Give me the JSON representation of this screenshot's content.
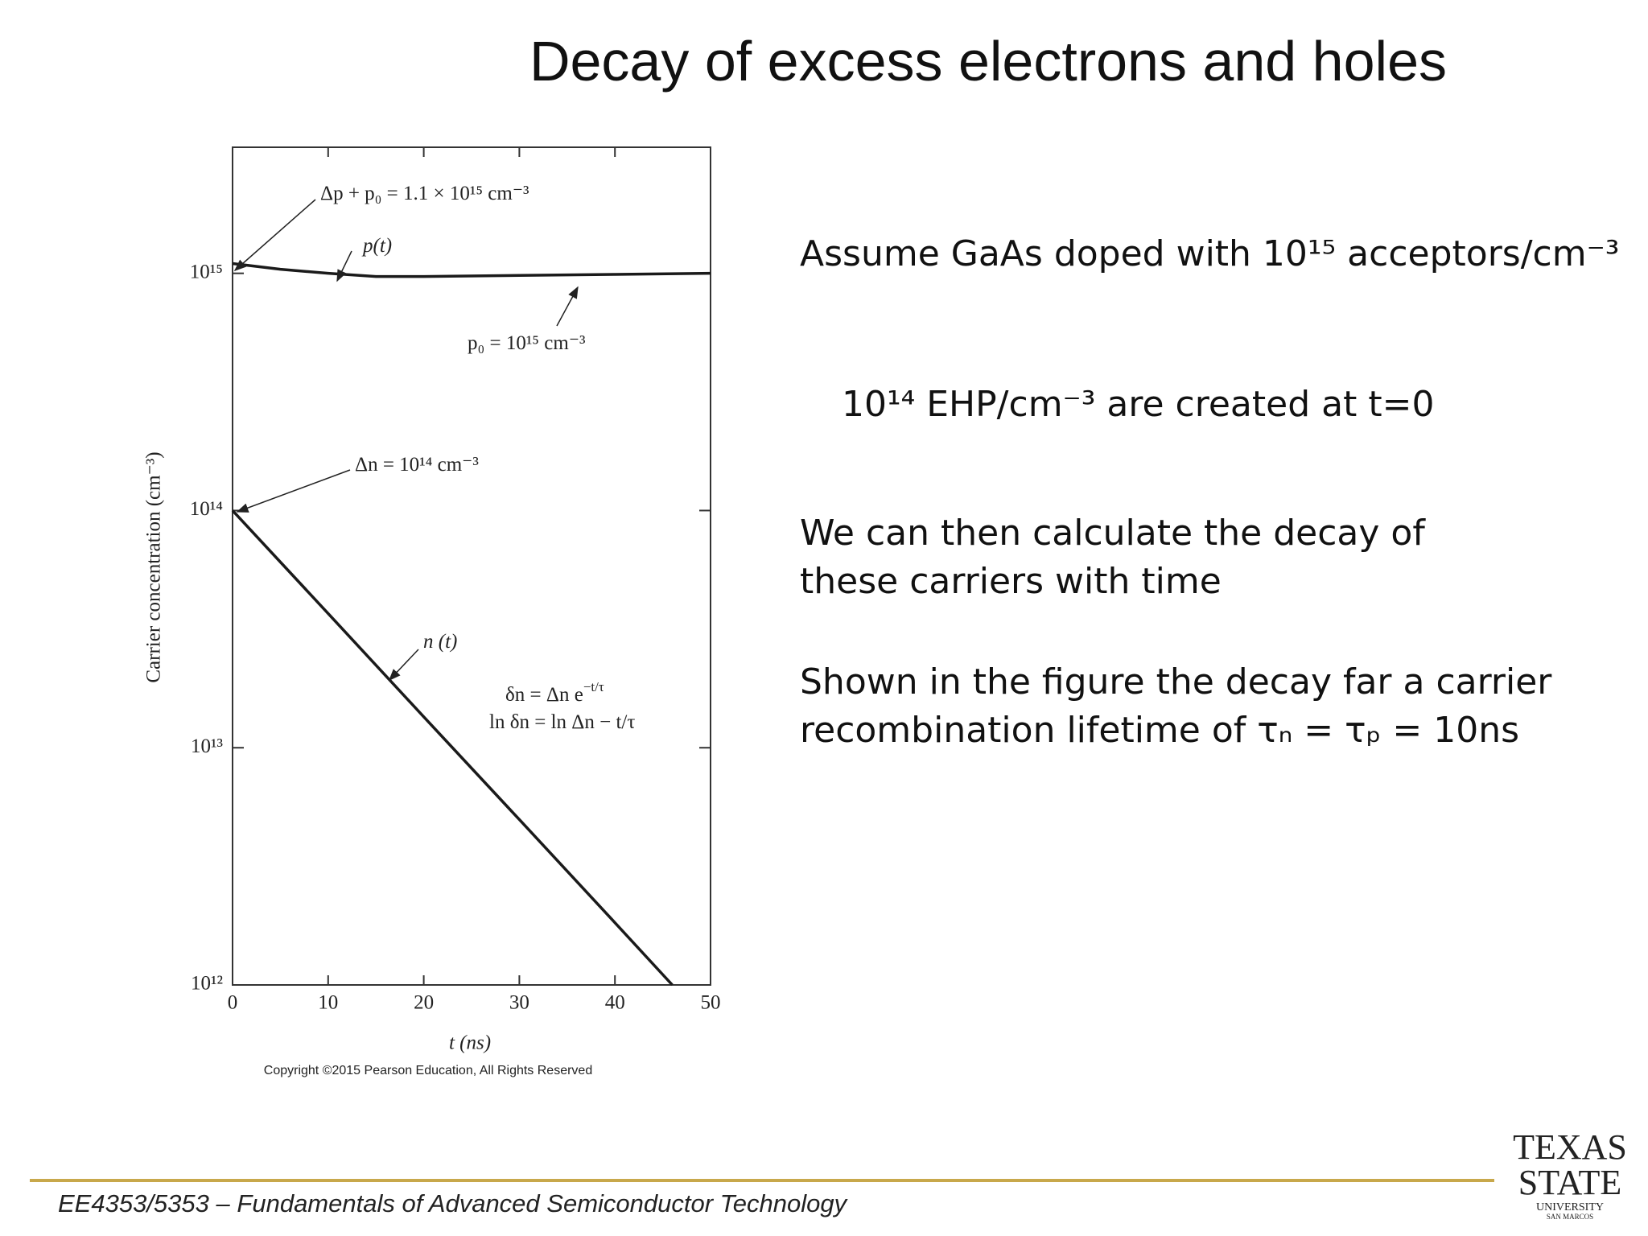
{
  "title": "Decay of excess electrons and holes",
  "chart_data": {
    "type": "line",
    "y_label": "Carrier concentration (cm⁻³)",
    "x_label": "t (ns)",
    "yscale": "log",
    "xlim": [
      0,
      50
    ],
    "xticks": [
      0,
      10,
      20,
      30,
      40,
      50
    ],
    "ylim": [
      1000000000000.0,
      3400000000000000.0
    ],
    "yticks": [
      {
        "value": 1000000000000.0,
        "label": "10¹²"
      },
      {
        "value": 10000000000000.0,
        "label": "10¹³"
      },
      {
        "value": 100000000000000.0,
        "label": "10¹⁴"
      },
      {
        "value": 1000000000000000.0,
        "label": "10¹⁵"
      }
    ],
    "series": [
      {
        "name": "p(t)",
        "color": "#1a1a1a",
        "x": [
          0,
          5,
          10,
          15,
          20,
          30,
          40,
          50
        ],
        "values": [
          1100000000000000.0,
          1040000000000000.0,
          1000000000000000.0,
          970000000000000.0,
          970000000000000.0,
          980000000000000.0,
          990000000000000.0,
          1000000000000000.0
        ]
      },
      {
        "name": "n (t)",
        "color": "#1a1a1a",
        "x": [
          0,
          10,
          20,
          30,
          40,
          46
        ],
        "values": [
          100000000000000.0,
          36800000000000.0,
          13500000000000.0,
          4980000000000.0,
          1830000000000.0,
          1000000000000.0
        ]
      }
    ],
    "annotations": [
      {
        "text": "Δp + p₀ = 1.1 × 10¹⁵ cm⁻³"
      },
      {
        "text": "p(t)"
      },
      {
        "text": "p₀ = 10¹⁵ cm⁻³"
      },
      {
        "text": "Δn = 10¹⁴ cm⁻³"
      },
      {
        "text": "n (t)"
      },
      {
        "text": "δn = Δn e",
        "sup": "−t/τ"
      },
      {
        "text": "ln δn = ln Δn − t/τ"
      }
    ],
    "copyright": "Copyright ©2015 Pearson Education, All Rights Reserved"
  },
  "text": [
    "Assume GaAs doped with 10¹⁵ acceptors/cm⁻³",
    "10¹⁴ EHP/cm⁻³ are created at t=0",
    "We can then calculate the decay of these carriers with time",
    "Shown in the figure the decay far a carrier recombination lifetime of τₙ = τₚ = 10ns"
  ],
  "footer": {
    "course": "EE4353/5353",
    "separator": "–",
    "name": "Fundamentals of Advanced Semiconductor Technology"
  },
  "logo": {
    "line1": "TEXAS",
    "line2": "STATE",
    "line3": "UNIVERSITY",
    "line4": "SAN MARCOS"
  }
}
